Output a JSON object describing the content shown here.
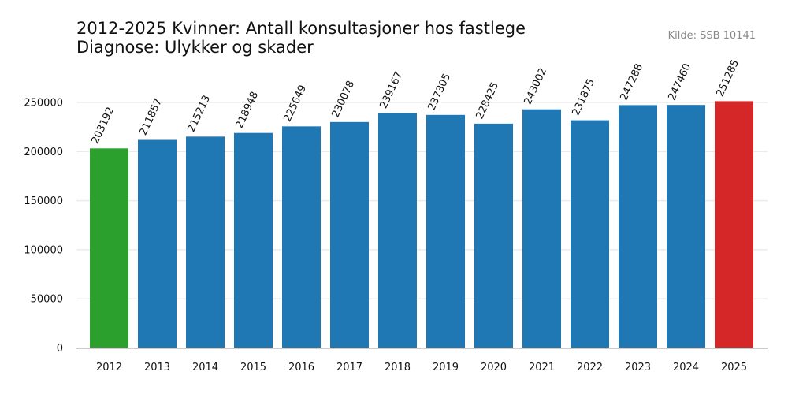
{
  "chart_data": {
    "type": "bar",
    "title_lines": [
      "2012-2025 Kvinner: Antall konsultasjoner hos fastlege",
      "Diagnose: Ulykker og skader"
    ],
    "source": "Kilde: SSB 10141",
    "categories": [
      "2012",
      "2013",
      "2014",
      "2015",
      "2016",
      "2017",
      "2018",
      "2019",
      "2020",
      "2021",
      "2022",
      "2023",
      "2024",
      "2025"
    ],
    "values": [
      203192,
      211857,
      215213,
      218948,
      225649,
      230078,
      239167,
      237305,
      228425,
      243002,
      231875,
      247288,
      247460,
      251285
    ],
    "bar_colors": [
      "#2ca02c",
      "#1f77b4",
      "#1f77b4",
      "#1f77b4",
      "#1f77b4",
      "#1f77b4",
      "#1f77b4",
      "#1f77b4",
      "#1f77b4",
      "#1f77b4",
      "#1f77b4",
      "#1f77b4",
      "#1f77b4",
      "#d62728"
    ],
    "yticks": [
      0,
      50000,
      100000,
      150000,
      200000,
      250000
    ],
    "ylim": [
      0,
      275000
    ],
    "xlabel": "",
    "ylabel": "",
    "grid": "horizontal",
    "grid_color": "#ebebeb",
    "baseline_color": "#cccccc"
  }
}
